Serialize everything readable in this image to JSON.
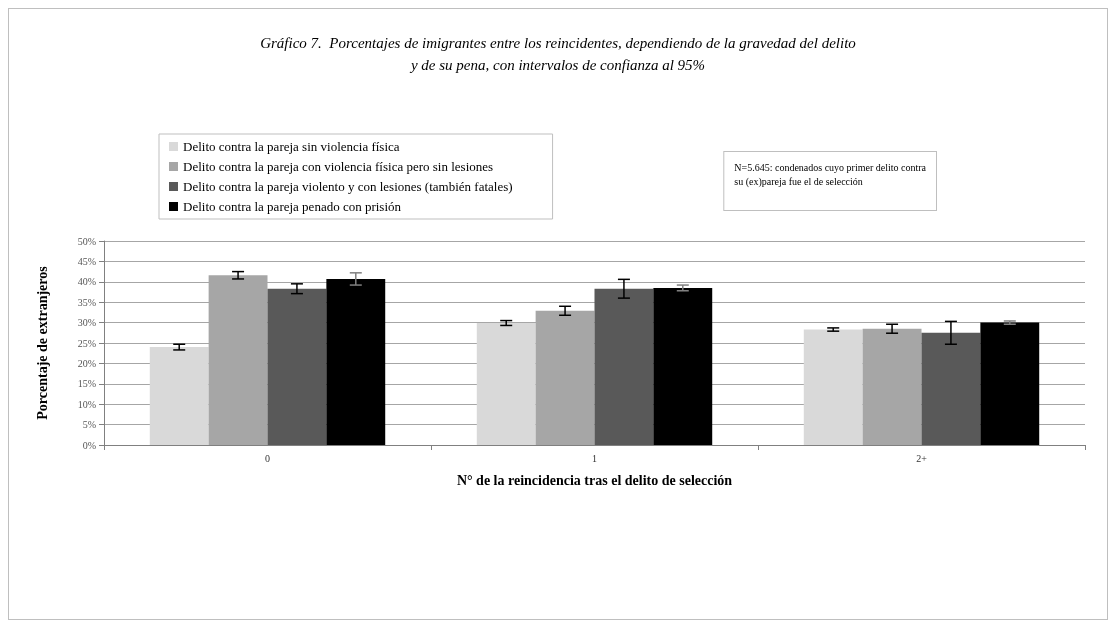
{
  "chart_data": {
    "type": "bar",
    "title": "Gráfico 7.  Porcentajes de imigrantes entre los reincidentes, dependiendo de la gravedad del delito\ny de su pena, con intervalos de confianza al 95%",
    "xlabel": "N° de la reincidencia tras el delito de selección",
    "ylabel": "Porcentaje de extranjeros",
    "categories": [
      "0",
      "1",
      "2+"
    ],
    "series": [
      {
        "name": "Delito contra la pareja sin violencia física",
        "color": "#d9d9d9",
        "values": [
          24.0,
          29.9,
          28.3
        ],
        "errors": [
          0.7,
          0.6,
          0.4
        ]
      },
      {
        "name": "Delito contra la pareja con violencia física pero sin lesiones",
        "color": "#a6a6a6",
        "values": [
          41.6,
          32.9,
          28.5
        ],
        "errors": [
          0.9,
          1.1,
          1.1
        ]
      },
      {
        "name": "Delito contra la pareja violento y con lesiones (también fatales)",
        "color": "#595959",
        "values": [
          38.3,
          38.3,
          27.5
        ],
        "errors": [
          1.2,
          2.3,
          2.8
        ]
      },
      {
        "name": "Delito contra la pareja penado con prisión",
        "color": "#000000",
        "values": [
          40.7,
          38.5,
          30.0
        ],
        "errors": [
          1.5,
          0.7,
          0.4
        ]
      }
    ],
    "ylim": [
      0,
      50
    ],
    "yticks": [
      {
        "value": 0,
        "label": "0%"
      },
      {
        "value": 5,
        "label": "5%"
      },
      {
        "value": 10,
        "label": "10%"
      },
      {
        "value": 15,
        "label": "15%"
      },
      {
        "value": 20,
        "label": "20%"
      },
      {
        "value": 25,
        "label": "25%"
      },
      {
        "value": 30,
        "label": "30%"
      },
      {
        "value": 35,
        "label": "35%"
      },
      {
        "value": 40,
        "label": "40%"
      },
      {
        "value": 45,
        "label": "45%"
      },
      {
        "value": 50,
        "label": "50%"
      }
    ],
    "grid": "y",
    "legend": "top left",
    "annotations": [
      "N=5.645: condenados cuyo primer delito contra\nsu (ex)pareja fue el de selección"
    ]
  }
}
